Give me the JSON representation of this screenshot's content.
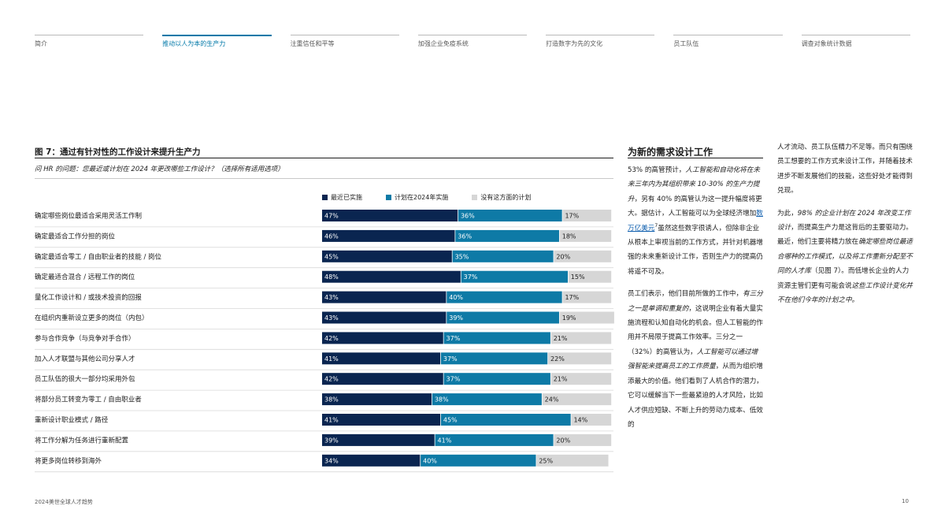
{
  "nav": {
    "items": [
      {
        "label": "简介",
        "active": false
      },
      {
        "label": "推动以人为本的生产力",
        "active": true
      },
      {
        "label": "注重信任和平等",
        "active": false
      },
      {
        "label": "加强企业免疫系统",
        "active": false
      },
      {
        "label": "打造数字为先的文化",
        "active": false
      },
      {
        "label": "员工队伍",
        "active": false
      },
      {
        "label": "调查对象统计数据",
        "active": false
      }
    ]
  },
  "figure": {
    "title": "图 7：通过有针对性的工作设计来提升生产力",
    "question": "问 HR 的问题：您最近或计划在 2024 年更改哪些工作设计？（选择所有适用选项）"
  },
  "colors": {
    "recent": "#0a2550",
    "planned": "#0e7aa6",
    "none": "#d6d6d6",
    "accent": "#0078a8"
  },
  "chart_data": {
    "type": "bar",
    "orientation": "horizontal",
    "stacked": true,
    "series": [
      {
        "name": "最近已实施",
        "values": [
          47,
          46,
          45,
          48,
          43,
          43,
          42,
          41,
          42,
          38,
          41,
          39,
          34
        ]
      },
      {
        "name": "计划在2024年实施",
        "values": [
          36,
          36,
          35,
          37,
          40,
          39,
          37,
          37,
          37,
          38,
          45,
          41,
          40
        ]
      },
      {
        "name": "没有这方面的计划",
        "values": [
          17,
          18,
          20,
          15,
          17,
          19,
          21,
          22,
          21,
          24,
          14,
          20,
          25
        ]
      }
    ],
    "categories": [
      "确定哪些岗位最适合采用灵活工作制",
      "确定最适合工作分担的岗位",
      "确定最适合零工 / 自由职业者的技能 / 岗位",
      "确定最适合混合 / 远程工作的岗位",
      "量化工作设计和 / 或技术投资的回报",
      "在组织内重新设立更多的岗位（内包）",
      "参与合作竞争（与竞争对手合作）",
      "加入人才联盟与其他公司分享人才",
      "员工队伍的很大一部分均采用外包",
      "将部分员工转变为零工 / 自由职业者",
      "重新设计职业模式 / 路径",
      "将工作分解为任务进行重新配置",
      "将更多岗位转移到海外"
    ],
    "labels": [
      [
        "47%",
        "36%",
        "17%"
      ],
      [
        "46%",
        "36%",
        "18%"
      ],
      [
        "45%",
        "35%",
        "20%"
      ],
      [
        "48%",
        "37%",
        "15%"
      ],
      [
        "43%",
        "40%",
        "17%"
      ],
      [
        "43%",
        "39%",
        "19%"
      ],
      [
        "42%",
        "37%",
        "21%"
      ],
      [
        "41%",
        "37%",
        "22%"
      ],
      [
        "42%",
        "37%",
        "21%"
      ],
      [
        "38%",
        "38%",
        "24%"
      ],
      [
        "41%",
        "45%",
        "14%"
      ],
      [
        "39%",
        "41%",
        "20%"
      ],
      [
        "34%",
        "40%",
        "25%"
      ]
    ],
    "xlim": [
      0,
      100
    ]
  },
  "mid": {
    "heading": "为新的需求设计工作",
    "p1_a": "53% 的高管预计，",
    "p1_em": "人工智能和自动化将在未来三年内为其组织带来 10-30% 的生产力提升",
    "p1_b": "，另有 40% 的高管认为这一提升幅度将更大。据估计，人工智能可以为全球经济增加",
    "p1_link": "数万亿美元",
    "p1_sup": "7",
    "p1_c": "虽然这些数字很诱人，但除非企业从根本上审视当前的工作方式，并针对机器增强的未来重新设计工作，否则生产力的提高仍将遥不可及。",
    "p2_a": "员工们表示，他们目前所做的工作中，",
    "p2_em1": "有三分之一是单调和重复的",
    "p2_b": "，这说明企业有着大量实施流程和认知自动化的机会。但人工智能的作用并不局限于提高工作效率。三分之一（32%）的高管认为，",
    "p2_em2": "人工智能可以通过增强智能来提高员工的工作质量",
    "p2_c": "，从而为组织增添最大的价值。他们看到了人机合作的潜力，它可以缓解当下一些最紧迫的人才风险，比如人才供应短缺、不断上升的劳动力成本、低效的"
  },
  "right": {
    "p1": "人才流动、员工队伍精力不足等。而只有围绕员工想要的工作方式来设计工作，并随着技术进步不断发展他们的技能，这些好处才能得到兑现。",
    "p2_a": "为此，",
    "p2_em1": "98% 的企业计划在 2024 年改变工作设计",
    "p2_b": "，而提高生产力是这背后的主要驱动力。最近，他们主要将精力放在",
    "p2_em2": "确定哪些岗位最适合哪种的工作模式，以及将工作重新分配至不同的人才库",
    "p2_c": "（见图 7）。而低增长企业的人力资源主管们更有可能会说",
    "p2_em3": "这些工作设计变化并不在他们今年的计划之中。"
  },
  "footer": {
    "left": "2024美世全球人才趋势",
    "right": "10"
  }
}
